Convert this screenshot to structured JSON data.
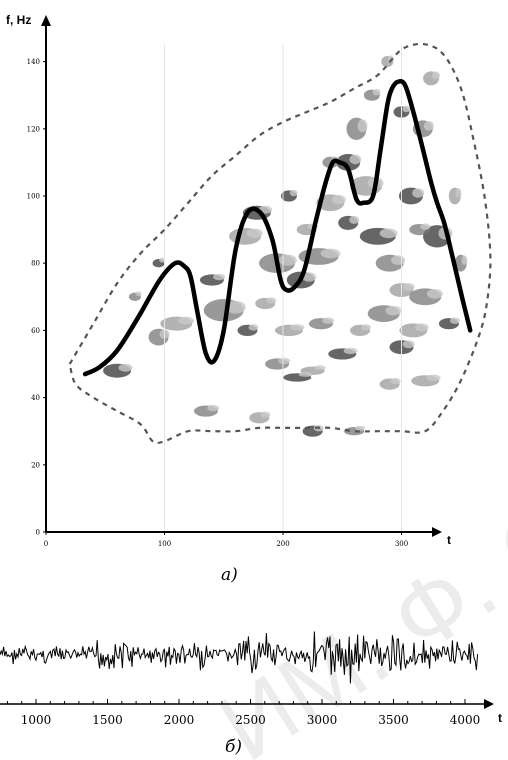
{
  "chart_data": [
    {
      "type": "line",
      "title": "",
      "subtitle_label": "а)",
      "ylabel": "f, Hz",
      "xlabel": "t",
      "xlim": [
        0,
        400
      ],
      "ylim": [
        0,
        150
      ],
      "x_ticks": [
        "0",
        "100",
        "200",
        "300"
      ],
      "y_ticks": [
        "0",
        "20",
        "40",
        "60",
        "80",
        "100",
        "120",
        "140"
      ],
      "background": "spectrogram",
      "series": [
        {
          "style": "solid",
          "color": "#000000",
          "x": [
            33,
            45,
            60,
            78,
            96,
            109,
            117,
            122,
            128,
            135,
            142,
            150,
            160,
            170,
            181,
            191,
            198,
            203,
            210,
            218,
            228,
            236,
            242,
            248,
            255,
            262,
            268,
            276,
            282,
            288,
            292,
            297,
            303,
            310,
            318,
            325,
            330,
            336,
            343,
            351,
            358
          ],
          "y": [
            47,
            49,
            54,
            64,
            75,
            80,
            79,
            76,
            65,
            53,
            51,
            60,
            84,
            95,
            95,
            87,
            75,
            72,
            73,
            78,
            93,
            104,
            110,
            110,
            108,
            99,
            98,
            100,
            113,
            127,
            132,
            134,
            133,
            125,
            114,
            104,
            98,
            92,
            82,
            70,
            60
          ]
        },
        {
          "style": "dashed",
          "color": "#555555",
          "x": [
            20,
            40,
            60,
            80,
            100,
            120,
            140,
            160,
            180,
            200,
            220,
            240,
            260,
            280,
            298,
            310,
            322,
            333,
            343,
            352,
            360,
            370,
            375,
            372,
            365,
            350,
            335,
            320,
            300,
            280,
            260,
            240,
            220,
            200,
            180,
            160,
            140,
            120,
            100,
            90,
            80,
            60,
            40,
            25,
            20
          ],
          "y": [
            50,
            62,
            74,
            83,
            90,
            98,
            106,
            112,
            118,
            122,
            125,
            128,
            132,
            136,
            143,
            145,
            145,
            143,
            138,
            130,
            118,
            100,
            82,
            68,
            58,
            45,
            36,
            30,
            30,
            30,
            30,
            31,
            31,
            31,
            31,
            30,
            30,
            30,
            27,
            27,
            32,
            36,
            40,
            44,
            50
          ]
        }
      ]
    },
    {
      "type": "line",
      "title": "",
      "subtitle_label": "б)",
      "xlabel": "t",
      "ylabel": "",
      "x_ticks": [
        "1000",
        "1500",
        "2000",
        "2500",
        "3000",
        "3500",
        "4000"
      ],
      "xlim": [
        700,
        4100
      ],
      "series": [
        {
          "name": "",
          "style": "solid",
          "color": "#000000",
          "waveform": "noise-like signal",
          "description_x_range": [
            700,
            4050
          ]
        }
      ]
    }
  ],
  "watermark": "ЭЛЕКТРОННЫЙ АРХИВ БГУ ИМЕНИ Ф. СКОРИНЫ"
}
